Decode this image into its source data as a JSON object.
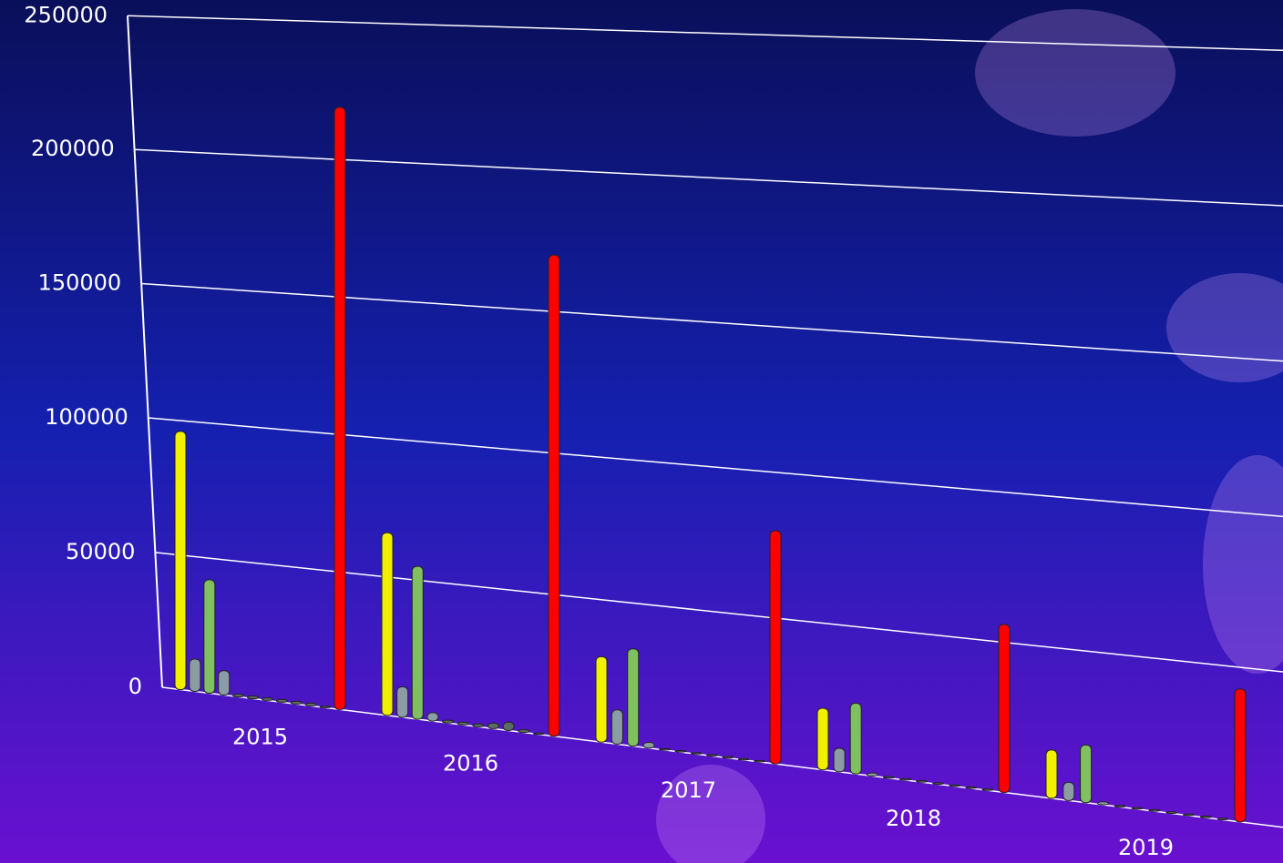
{
  "chart_data": {
    "type": "bar3d",
    "categories": [
      "2015",
      "2016",
      "2017",
      "2018",
      "2019"
    ],
    "series": [
      {
        "color": "#f0f000",
        "values": [
          96000,
          66000,
          30000,
          21000,
          16000
        ]
      },
      {
        "color": "#8c9ca4",
        "values": [
          12000,
          11000,
          12000,
          8000,
          6000
        ]
      },
      {
        "color": "#80c060",
        "values": [
          42000,
          55000,
          34000,
          24000,
          19000
        ]
      },
      {
        "color": "#8c9ca4",
        "values": [
          9000,
          3000,
          2000,
          1000,
          1000
        ]
      },
      {
        "color": "#5c6c64",
        "values": [
          1000,
          1000,
          500,
          500,
          500
        ]
      },
      {
        "color": "#5c6c64",
        "values": [
          1000,
          1000,
          500,
          500,
          500
        ]
      },
      {
        "color": "#5c6c64",
        "values": [
          1000,
          1000,
          500,
          500,
          500
        ]
      },
      {
        "color": "#5c6c64",
        "values": [
          1000,
          2000,
          500,
          500,
          500
        ]
      },
      {
        "color": "#5c6c64",
        "values": [
          1000,
          3000,
          500,
          500,
          500
        ]
      },
      {
        "color": "#5c6c64",
        "values": [
          1000,
          1000,
          500,
          500,
          500
        ]
      },
      {
        "color": "#5c6c64",
        "values": [
          500,
          500,
          500,
          500,
          500
        ]
      },
      {
        "color": "#ff0000",
        "values": [
          219000,
          170000,
          80000,
          56000,
          43000
        ]
      }
    ],
    "ylim": [
      0,
      250000
    ],
    "yticks": [
      0,
      50000,
      100000,
      150000,
      200000,
      250000
    ],
    "grid": true
  }
}
